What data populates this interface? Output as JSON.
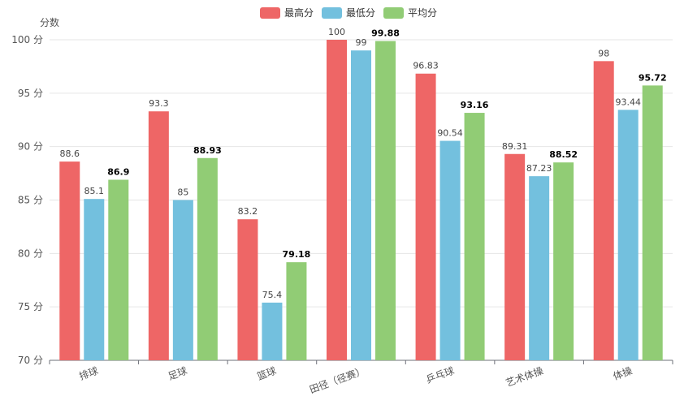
{
  "chart_data": {
    "type": "bar",
    "ylabel": "分数",
    "ylim": [
      70,
      100
    ],
    "y_ticks": [
      {
        "value": 70,
        "label": "70 分"
      },
      {
        "value": 75,
        "label": "75 分"
      },
      {
        "value": 80,
        "label": "80 分"
      },
      {
        "value": 85,
        "label": "85 分"
      },
      {
        "value": 90,
        "label": "90 分"
      },
      {
        "value": 95,
        "label": "95 分"
      },
      {
        "value": 100,
        "label": "100 分"
      }
    ],
    "categories": [
      "排球",
      "足球",
      "篮球",
      "田径（径赛）",
      "乒乓球",
      "艺术体操",
      "体操"
    ],
    "series": [
      {
        "name": "最高分",
        "color": "#ee6666",
        "bold_labels": false,
        "values": [
          88.6,
          93.3,
          83.2,
          100,
          96.83,
          89.31,
          98
        ]
      },
      {
        "name": "最低分",
        "color": "#73c0de",
        "bold_labels": false,
        "values": [
          85.1,
          85,
          75.4,
          99,
          90.54,
          87.23,
          93.44
        ]
      },
      {
        "name": "平均分",
        "color": "#91cc75",
        "bold_labels": true,
        "values": [
          86.9,
          88.93,
          79.18,
          99.88,
          93.16,
          88.52,
          95.72
        ]
      }
    ],
    "legend_position": "top-center",
    "grid": true
  }
}
